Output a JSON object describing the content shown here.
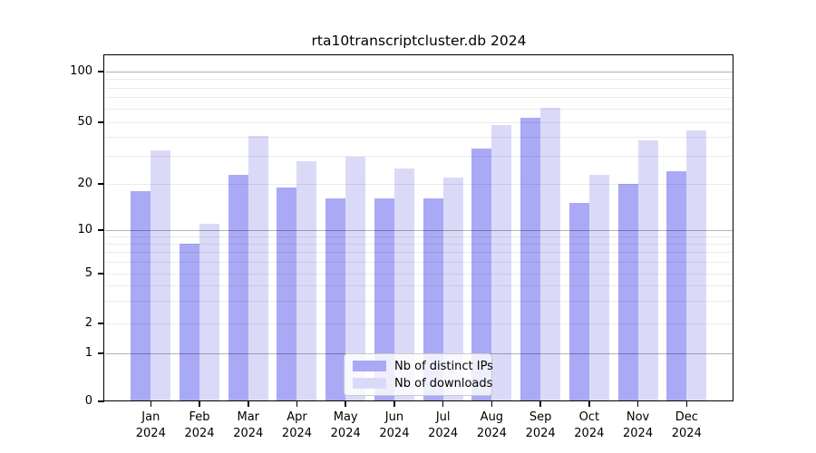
{
  "chart_data": {
    "type": "bar",
    "title": "rta10transcriptcluster.db 2024",
    "categories": [
      "Jan",
      "Feb",
      "Mar",
      "Apr",
      "May",
      "Jun",
      "Jul",
      "Aug",
      "Sep",
      "Oct",
      "Nov",
      "Dec"
    ],
    "category_year": "2024",
    "series": [
      {
        "name": "Nb of distinct IPs",
        "color": "#a9a9f5",
        "values": [
          18,
          8,
          23,
          19,
          16,
          16,
          16,
          34,
          53,
          15,
          20,
          24
        ]
      },
      {
        "name": "Nb of downloads",
        "color": "#dadaf8",
        "values": [
          33,
          11,
          41,
          28,
          30,
          25,
          22,
          48,
          61,
          23,
          38,
          44
        ]
      }
    ],
    "yscale": "log-like-with-zero-baseline",
    "ylim": [
      0,
      125
    ],
    "y_tick_labels": [
      "100",
      "50",
      "20",
      "10",
      "5",
      "2",
      "1",
      "0"
    ],
    "y_tick_values": [
      100,
      50,
      20,
      10,
      5,
      2,
      1,
      0
    ],
    "grid": {
      "major_values": [
        1,
        10,
        100
      ],
      "minor_values": [
        2,
        3,
        4,
        5,
        6,
        7,
        8,
        9,
        20,
        30,
        40,
        50,
        60,
        70,
        80,
        90
      ]
    },
    "legend": {
      "position": "lower center",
      "entries": [
        "Nb of distinct IPs",
        "Nb of downloads"
      ]
    }
  }
}
